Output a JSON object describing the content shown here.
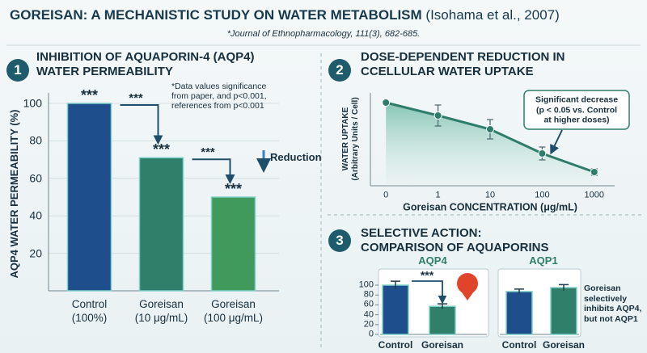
{
  "header": {
    "title": "GOREISAN: A MECHANISTIC STUDY ON WATER METABOLISM",
    "citation": "(Isohama et al., 2007)",
    "source": "*Journal of Ethnopharmacology, 111(3), 682-685."
  },
  "chart_data": [
    {
      "type": "bar",
      "panel": "1",
      "title": "INHIBITION OF AQUAPORIN-4 (AQP4)\nWATER PERMEABILITY",
      "y_label": "AQP4 WATER PERMEABILITY (%)",
      "categories": [
        "Control\n(100%)",
        "Goreisan\n(10 μg/mL)",
        "Goreisan\n(100 μg/mL)"
      ],
      "values": [
        100,
        71,
        50
      ],
      "colors": [
        "#1f4e8c",
        "#2f7f6a",
        "#3f9a5c"
      ],
      "significance": [
        "***",
        "***",
        "***"
      ],
      "comparison_labels": [
        "***",
        "***"
      ],
      "annotation": "Reduction",
      "note": "*Data values significance\nfrom paper, and p<0.001,\nreferences from p<0.001",
      "ylim": [
        0,
        100
      ],
      "yticks": [
        20,
        40,
        60,
        80,
        100
      ],
      "grid": true
    },
    {
      "type": "line",
      "panel": "2",
      "title": "DOSE-DEPENDENT REDUCTION IN\nCCELLULAR WATER UPTAKE",
      "x_label": "Goreisan CONCENTRATION (μg/mL)",
      "y_label": "WATER UPTAKE\n(Arbitrary Units / Cell)",
      "categories": [
        "0",
        "1",
        "10",
        "100",
        "1000"
      ],
      "values": [
        98,
        82,
        65,
        35,
        12
      ],
      "errors": [
        null,
        13,
        12,
        8,
        4
      ],
      "color": "#2e7d6b",
      "ylim": [
        0,
        100
      ],
      "annotation": "Significant decrease\n(p < 0.05 vs. Control\nat higher doses)"
    },
    {
      "type": "comparison",
      "panel": "3",
      "title": "SELECTIVE ACTION:\nCOMPARISON OF AQUAPORINS",
      "note": "Goreisan\nselectively\ninhibits AQP4,\nbut not AQP1",
      "subcharts": [
        {
          "title": "AQP4",
          "categories": [
            "Control",
            "Goreisan"
          ],
          "values": [
            100,
            57
          ],
          "errors": [
            8,
            5
          ],
          "colors": [
            "#1f4e8c",
            "#2f7f6a"
          ],
          "significance": "***",
          "ylim": [
            0,
            100
          ],
          "yticks": [
            0,
            20,
            40,
            60,
            80,
            100
          ]
        },
        {
          "title": "AQP1",
          "categories": [
            "Control",
            "Goreisan"
          ],
          "values": [
            87,
            95
          ],
          "errors": [
            5,
            6
          ],
          "colors": [
            "#1f4e8c",
            "#2f7f6a"
          ],
          "ylim": [
            0,
            100
          ]
        }
      ]
    }
  ]
}
